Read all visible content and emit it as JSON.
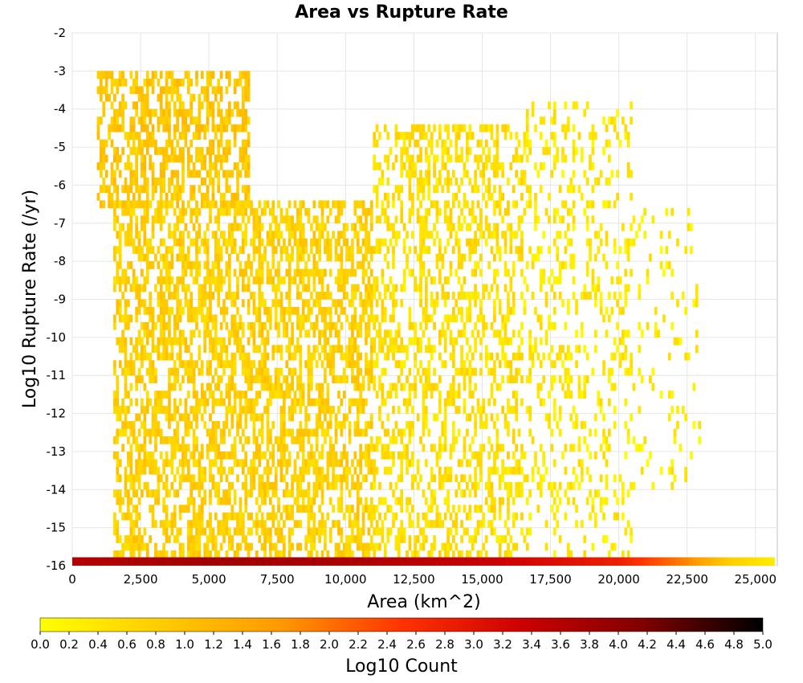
{
  "chart_data": {
    "type": "heatmap",
    "title": "Area vs Rupture Rate",
    "xlabel": "Area (km^2)",
    "ylabel": "Log10 Rupture Rate (/yr)",
    "xlim": [
      0,
      25800
    ],
    "ylim": [
      -16,
      -2
    ],
    "x_ticks": [
      "0",
      "2,500",
      "5,000",
      "7,500",
      "10,000",
      "12,500",
      "15,000",
      "17,500",
      "20,000",
      "22,500",
      "25,000"
    ],
    "x_tick_values": [
      0,
      2500,
      5000,
      7500,
      10000,
      12500,
      15000,
      17500,
      20000,
      22500,
      25000
    ],
    "y_ticks": [
      "-2",
      "-3",
      "-4",
      "-5",
      "-6",
      "-7",
      "-8",
      "-9",
      "-10",
      "-11",
      "-12",
      "-13",
      "-14",
      "-15",
      "-16"
    ],
    "y_tick_values": [
      -2,
      -3,
      -4,
      -5,
      -6,
      -7,
      -8,
      -9,
      -10,
      -11,
      -12,
      -13,
      -14,
      -15,
      -16
    ],
    "grid": true,
    "colorbar": {
      "label": "Log10 Count",
      "min": 0.0,
      "max": 5.0,
      "ticks": [
        "0.0",
        "0.2",
        "0.4",
        "0.6",
        "0.8",
        "1.0",
        "1.2",
        "1.4",
        "1.6",
        "1.8",
        "2.0",
        "2.2",
        "2.4",
        "2.6",
        "2.8",
        "3.0",
        "3.2",
        "3.4",
        "3.6",
        "3.8",
        "4.0",
        "4.2",
        "4.4",
        "4.6",
        "4.8",
        "5.0"
      ],
      "colors": [
        "#ffff00",
        "#ffcc00",
        "#ff9900",
        "#ff3300",
        "#cc0000",
        "#800000",
        "#000000"
      ]
    },
    "bin_width_x": 100,
    "bin_height_y": 0.2,
    "density_regions": [
      {
        "x": [
          900,
          6500
        ],
        "y": [
          -6.6,
          -3.0
        ],
        "log10_count": 0.9
      },
      {
        "x": [
          1500,
          11000
        ],
        "y": [
          -15.8,
          -6.6
        ],
        "log10_count": 0.75
      },
      {
        "x": [
          11000,
          16500
        ],
        "y": [
          -15.8,
          -4.5
        ],
        "log10_count": 0.5
      },
      {
        "x": [
          16500,
          20500
        ],
        "y": [
          -15.8,
          -4.0
        ],
        "log10_count": 0.35
      },
      {
        "x": [
          20500,
          23000
        ],
        "y": [
          -14.0,
          -6.8
        ],
        "log10_count": 0.3
      }
    ],
    "floor_row": {
      "y": -16.0,
      "x": [
        0,
        25700
      ],
      "log10_count_by_x": [
        [
          0,
          3.6
        ],
        [
          5000,
          3.8
        ],
        [
          10000,
          3.7
        ],
        [
          15000,
          3.4
        ],
        [
          20000,
          2.8
        ],
        [
          22500,
          1.8
        ],
        [
          24000,
          0.8
        ],
        [
          25700,
          0.3
        ]
      ]
    }
  }
}
